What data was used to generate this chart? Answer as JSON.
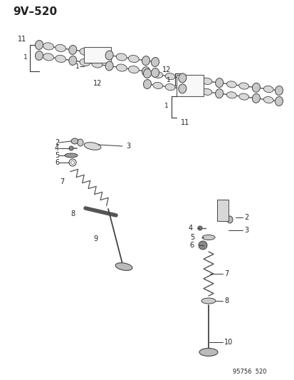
{
  "title": "9V–520",
  "footer": "95756  520",
  "bg_color": "#ffffff",
  "fig_width": 4.14,
  "fig_height": 5.33,
  "dpi": 100,
  "cam_color": "#c8c8c8",
  "cam_edge": "#444444",
  "line_color": "#333333",
  "text_color": "#222222",
  "lobe_color": "#d8d8d8",
  "spring_color": "#555555"
}
